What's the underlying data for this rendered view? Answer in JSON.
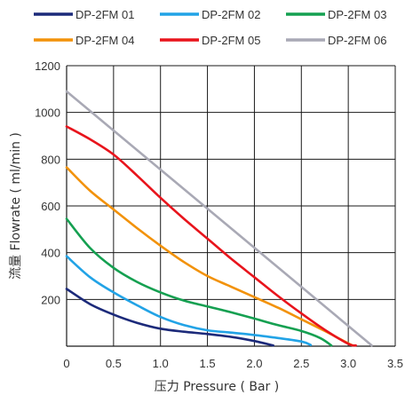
{
  "chart_data": {
    "type": "line",
    "title": "",
    "xlabel": "压力 Pressure ( Bar )",
    "ylabel": "流量 Flowrate ( ml/min )",
    "xlim": [
      0,
      3.5
    ],
    "ylim": [
      0,
      1200
    ],
    "x_ticks": [
      "0",
      "0.5",
      "1.0",
      "1.5",
      "2.0",
      "2.5",
      "3.0",
      "3.5"
    ],
    "y_ticks": [
      "200",
      "400",
      "600",
      "800",
      "1000",
      "1200"
    ],
    "grid": true,
    "legend_position": "top",
    "series": [
      {
        "name": "DP-2FM 01",
        "color": "#1c2a7a",
        "points": [
          [
            0,
            245
          ],
          [
            0.25,
            180
          ],
          [
            0.5,
            135
          ],
          [
            0.75,
            100
          ],
          [
            1.0,
            75
          ],
          [
            1.25,
            62
          ],
          [
            1.5,
            52
          ],
          [
            1.75,
            40
          ],
          [
            2.0,
            22
          ],
          [
            2.2,
            3
          ]
        ]
      },
      {
        "name": "DP-2FM 02",
        "color": "#22a3e6",
        "points": [
          [
            0,
            385
          ],
          [
            0.25,
            295
          ],
          [
            0.5,
            230
          ],
          [
            0.75,
            175
          ],
          [
            1.0,
            125
          ],
          [
            1.25,
            90
          ],
          [
            1.5,
            68
          ],
          [
            1.75,
            58
          ],
          [
            2.0,
            48
          ],
          [
            2.25,
            35
          ],
          [
            2.5,
            20
          ],
          [
            2.6,
            5
          ]
        ]
      },
      {
        "name": "DP-2FM 03",
        "color": "#15a051",
        "points": [
          [
            0,
            545
          ],
          [
            0.25,
            420
          ],
          [
            0.5,
            335
          ],
          [
            0.75,
            275
          ],
          [
            1.0,
            230
          ],
          [
            1.25,
            195
          ],
          [
            1.5,
            170
          ],
          [
            1.75,
            145
          ],
          [
            2.0,
            118
          ],
          [
            2.25,
            90
          ],
          [
            2.5,
            65
          ],
          [
            2.7,
            35
          ],
          [
            2.82,
            3
          ]
        ]
      },
      {
        "name": "DP-2FM 04",
        "color": "#f2920a",
        "points": [
          [
            0,
            765
          ],
          [
            0.25,
            665
          ],
          [
            0.5,
            585
          ],
          [
            0.75,
            505
          ],
          [
            1.0,
            430
          ],
          [
            1.25,
            360
          ],
          [
            1.5,
            300
          ],
          [
            1.75,
            255
          ],
          [
            2.0,
            210
          ],
          [
            2.25,
            165
          ],
          [
            2.5,
            115
          ],
          [
            2.75,
            65
          ],
          [
            3.0,
            12
          ],
          [
            3.05,
            3
          ]
        ]
      },
      {
        "name": "DP-2FM 05",
        "color": "#e8141c",
        "points": [
          [
            0,
            940
          ],
          [
            0.25,
            885
          ],
          [
            0.5,
            820
          ],
          [
            0.75,
            730
          ],
          [
            1.0,
            635
          ],
          [
            1.25,
            545
          ],
          [
            1.5,
            460
          ],
          [
            1.75,
            375
          ],
          [
            2.0,
            295
          ],
          [
            2.25,
            215
          ],
          [
            2.5,
            140
          ],
          [
            2.75,
            70
          ],
          [
            3.0,
            10
          ],
          [
            3.08,
            3
          ]
        ]
      },
      {
        "name": "DP-2FM 06",
        "color": "#a9a9b5",
        "points": [
          [
            0,
            1090
          ],
          [
            3.25,
            3
          ]
        ]
      }
    ]
  }
}
